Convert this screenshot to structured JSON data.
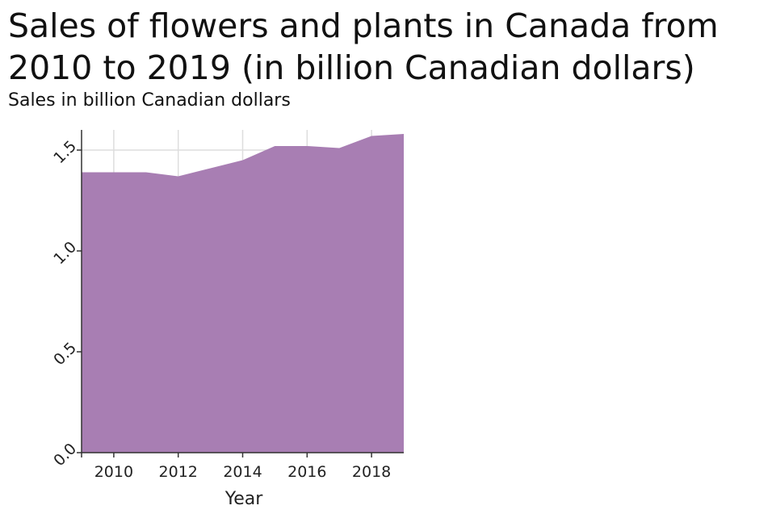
{
  "chart_data": {
    "type": "area",
    "title": "Sales of flowers and plants in Canada from 2010 to 2019 (in billion Canadian dollars)",
    "xlabel": "Year",
    "ylabel": "Sales in billion Canadian dollars",
    "x": [
      2009,
      2010,
      2011,
      2012,
      2013,
      2014,
      2015,
      2016,
      2017,
      2018,
      2019
    ],
    "values": [
      1.39,
      1.39,
      1.39,
      1.37,
      1.41,
      1.45,
      1.52,
      1.52,
      1.51,
      1.57,
      1.58
    ],
    "xticks": [
      2010,
      2012,
      2014,
      2016,
      2018
    ],
    "xtick_labels": [
      "2010",
      "2012",
      "2014",
      "2016",
      "2018"
    ],
    "yticks": [
      0.0,
      0.5,
      1.0,
      1.5
    ],
    "ytick_labels": [
      "0.0",
      "0.5",
      "1.0",
      "1.5"
    ],
    "xlim": [
      2009,
      2019
    ],
    "ylim": [
      0,
      1.6
    ],
    "grid": true,
    "legend": "none",
    "fill_color": "#a87eb3"
  }
}
